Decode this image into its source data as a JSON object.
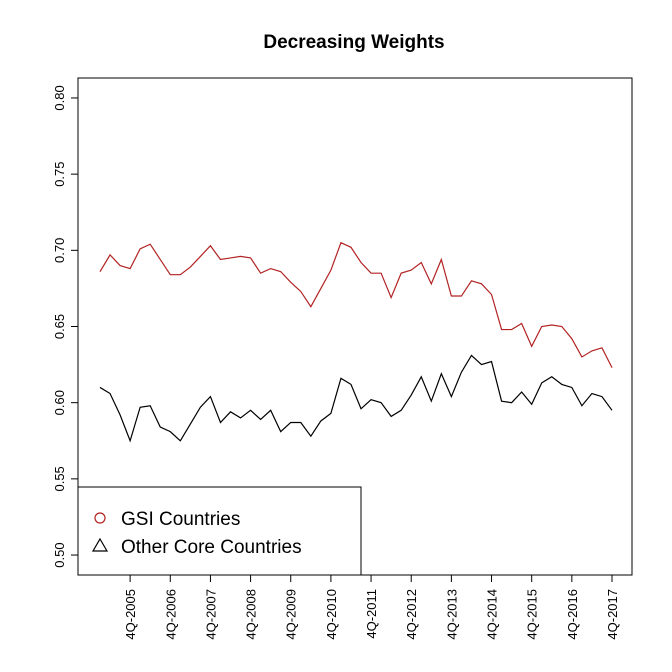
{
  "chart_data": {
    "type": "line",
    "title": "Decreasing Weights",
    "categories": [
      null,
      null,
      null,
      "4Q-2005",
      null,
      null,
      null,
      "4Q-2006",
      null,
      null,
      null,
      "4Q-2007",
      null,
      null,
      null,
      "4Q-2008",
      null,
      null,
      null,
      "4Q-2009",
      null,
      null,
      null,
      "4Q-2010",
      null,
      null,
      null,
      "4Q-2011",
      null,
      null,
      null,
      "4Q-2012",
      null,
      null,
      null,
      "4Q-2013",
      null,
      null,
      null,
      "4Q-2014",
      null,
      null,
      null,
      "4Q-2015",
      null,
      null,
      null,
      "4Q-2016",
      null,
      null,
      null,
      "4Q-2017"
    ],
    "series": [
      {
        "name": "GSI Countries",
        "color": "#b22222",
        "marker": "circle",
        "values": [
          0.686,
          0.697,
          0.69,
          0.688,
          0.701,
          0.704,
          0.694,
          0.684,
          0.684,
          0.689,
          0.696,
          0.703,
          0.694,
          0.695,
          0.696,
          0.695,
          0.685,
          0.688,
          0.686,
          0.679,
          0.673,
          0.663,
          0.675,
          0.687,
          0.705,
          0.702,
          0.692,
          0.685,
          0.685,
          0.669,
          0.685,
          0.687,
          0.692,
          0.678,
          0.694,
          0.67,
          0.67,
          0.68,
          0.678,
          0.671,
          0.648,
          0.648,
          0.652,
          0.637,
          0.65,
          0.651,
          0.65,
          0.642,
          0.63,
          0.634,
          0.636,
          0.623
        ]
      },
      {
        "name": "Other Core Countries",
        "color": "#000000",
        "marker": "triangle",
        "values": [
          0.61,
          0.606,
          0.592,
          0.575,
          0.597,
          0.598,
          0.584,
          0.581,
          0.575,
          0.586,
          0.597,
          0.604,
          0.587,
          0.594,
          0.59,
          0.595,
          0.589,
          0.595,
          0.581,
          0.587,
          0.587,
          0.578,
          0.588,
          0.593,
          0.616,
          0.612,
          0.596,
          0.602,
          0.6,
          0.591,
          0.595,
          0.605,
          0.617,
          0.601,
          0.619,
          0.604,
          0.62,
          0.631,
          0.625,
          0.627,
          0.601,
          0.6,
          0.607,
          0.599,
          0.613,
          0.617,
          0.612,
          0.61,
          0.598,
          0.606,
          0.604,
          0.595
        ]
      }
    ],
    "ylim": [
      0.4869,
      0.8131
    ],
    "yticks": [
      {
        "value": 0.5,
        "label": "0.50"
      },
      0.55,
      {
        "value": 0.6,
        "label": "0.60"
      },
      0.65,
      {
        "value": 0.7,
        "label": "0.70"
      },
      0.75,
      {
        "value": 0.8,
        "label": "0.80"
      }
    ],
    "legend": "bottom-left"
  }
}
